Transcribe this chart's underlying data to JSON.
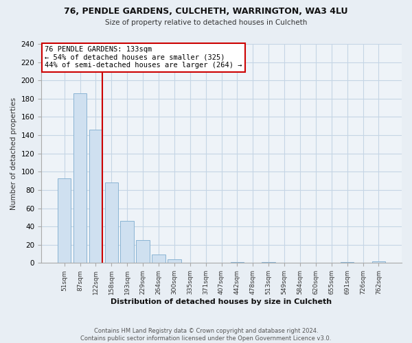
{
  "title": "76, PENDLE GARDENS, CULCHETH, WARRINGTON, WA3 4LU",
  "subtitle": "Size of property relative to detached houses in Culcheth",
  "xlabel": "Distribution of detached houses by size in Culcheth",
  "ylabel": "Number of detached properties",
  "bar_labels": [
    "51sqm",
    "87sqm",
    "122sqm",
    "158sqm",
    "193sqm",
    "229sqm",
    "264sqm",
    "300sqm",
    "335sqm",
    "371sqm",
    "407sqm",
    "442sqm",
    "478sqm",
    "513sqm",
    "549sqm",
    "584sqm",
    "620sqm",
    "655sqm",
    "691sqm",
    "726sqm",
    "762sqm"
  ],
  "bar_values": [
    93,
    186,
    146,
    88,
    46,
    25,
    9,
    4,
    0,
    0,
    0,
    1,
    0,
    1,
    0,
    0,
    0,
    0,
    1,
    0,
    2
  ],
  "bar_color": "#cfe0f0",
  "bar_edge_color": "#8ab4d4",
  "vline_color": "#cc0000",
  "annotation_line1": "76 PENDLE GARDENS: 133sqm",
  "annotation_line2": "← 54% of detached houses are smaller (325)",
  "annotation_line3": "44% of semi-detached houses are larger (264) →",
  "annotation_box_edge": "#cc0000",
  "ylim": [
    0,
    240
  ],
  "yticks": [
    0,
    20,
    40,
    60,
    80,
    100,
    120,
    140,
    160,
    180,
    200,
    220,
    240
  ],
  "footer_line1": "Contains HM Land Registry data © Crown copyright and database right 2024.",
  "footer_line2": "Contains public sector information licensed under the Open Government Licence v3.0.",
  "bg_color": "#e8eef4",
  "plot_bg_color": "#eef3f8",
  "grid_color": "#c5d5e5"
}
